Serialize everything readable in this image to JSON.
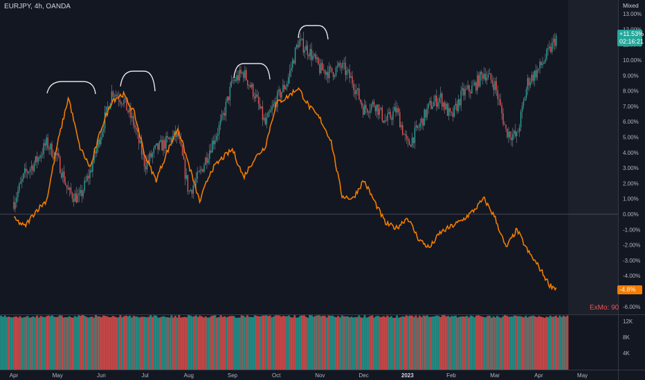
{
  "header": {
    "symbol_label": "EURJPY, 4h, OANDA",
    "scale_mode": "Mixed"
  },
  "badges": {
    "eurjpy_value": "+11.53%",
    "eurjpy_countdown": "02:16:21",
    "orange_value": "-4.8%"
  },
  "indicator_label": "ExMo: 90",
  "colors": {
    "background": "#131722",
    "up": "#26a69a",
    "down": "#ef5350",
    "orange_line": "#f57c00",
    "bracket": "#e6e6e6",
    "zero_line": "#787b86"
  },
  "chart_data": {
    "type": "line",
    "x": [
      "Apr",
      "May",
      "Jun",
      "Jul",
      "Aug",
      "Sep",
      "Oct",
      "Nov",
      "Dec",
      "2023",
      "Feb",
      "Mar",
      "Apr",
      "May"
    ],
    "yticks": [
      "13.00%",
      "12.00%",
      "11.00%",
      "10.00%",
      "9.00%",
      "8.00%",
      "7.00%",
      "6.00%",
      "5.00%",
      "4.00%",
      "3.00%",
      "2.00%",
      "1.00%",
      "0.00%",
      "-1.00%",
      "-2.00%",
      "-3.00%",
      "-4.00%",
      "-5.00%",
      "-6.00%"
    ],
    "ylim": [
      -6.3,
      13.3
    ],
    "volume_ticks": [
      "12K",
      "8K",
      "4K"
    ],
    "series": [
      {
        "name": "EURJPY",
        "style": "candles",
        "x": [
          0,
          0.25,
          0.5,
          0.75,
          1,
          1.25,
          1.5,
          1.75,
          2,
          2.25,
          2.5,
          2.75,
          3,
          3.25,
          3.5,
          3.75,
          4,
          4.25,
          4.5,
          4.75,
          5,
          5.25,
          5.5,
          5.75,
          6,
          6.25,
          6.5,
          6.75,
          7,
          7.25,
          7.5,
          7.75,
          8,
          8.25,
          8.5,
          8.75,
          9,
          9.25,
          9.5,
          9.75,
          10,
          10.25,
          10.5,
          10.75,
          11,
          11.25,
          11.5,
          11.75,
          12,
          12.25,
          12.4
        ],
        "values": [
          0.8,
          2.6,
          3.4,
          4.6,
          3.6,
          1.4,
          1.0,
          2.8,
          5.4,
          8.0,
          7.4,
          5.8,
          3.2,
          4.2,
          4.7,
          5.2,
          1.4,
          2.6,
          4.4,
          6.0,
          8.6,
          9.2,
          7.8,
          5.8,
          7.4,
          8.6,
          11.2,
          10.6,
          9.4,
          9.2,
          9.6,
          8.6,
          6.8,
          7.2,
          6.0,
          6.8,
          4.4,
          5.6,
          7.0,
          7.6,
          6.2,
          7.8,
          8.2,
          9.2,
          8.4,
          5.4,
          5.0,
          8.6,
          9.4,
          10.6,
          11.5
        ]
      },
      {
        "name": "",
        "style": "line",
        "x": [
          0,
          0.25,
          0.5,
          0.75,
          1,
          1.25,
          1.5,
          1.75,
          2,
          2.25,
          2.5,
          2.75,
          3,
          3.25,
          3.5,
          3.75,
          4,
          4.25,
          4.5,
          4.75,
          5,
          5.25,
          5.5,
          5.75,
          6,
          6.25,
          6.5,
          6.75,
          7,
          7.25,
          7.5,
          7.75,
          8,
          8.25,
          8.5,
          8.75,
          9,
          9.25,
          9.5,
          9.75,
          10,
          10.25,
          10.5,
          10.75,
          11,
          11.25,
          11.5,
          11.75,
          12,
          12.25,
          12.4
        ],
        "values": [
          -0.3,
          -0.8,
          0.2,
          0.9,
          4.6,
          7.6,
          4.4,
          3.0,
          5.6,
          7.4,
          7.8,
          6.6,
          3.8,
          2.2,
          4.0,
          5.6,
          3.2,
          0.8,
          2.8,
          3.6,
          4.2,
          2.4,
          3.6,
          4.4,
          7.2,
          7.6,
          8.2,
          7.0,
          6.2,
          4.8,
          1.2,
          1.0,
          2.2,
          0.8,
          -0.6,
          -0.9,
          -0.2,
          -1.6,
          -2.2,
          -1.2,
          -0.8,
          -0.4,
          0.2,
          1.0,
          -0.2,
          -2.2,
          -1.0,
          -2.4,
          -3.4,
          -4.6,
          -4.8
        ]
      }
    ],
    "volume_bars": {
      "unit": "K",
      "level_range": [
        0,
        12
      ]
    }
  }
}
